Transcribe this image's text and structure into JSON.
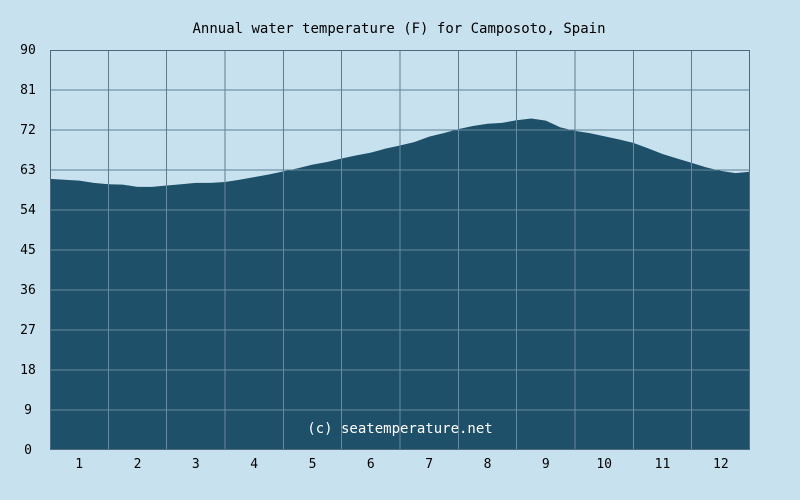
{
  "chart_data": {
    "type": "area",
    "title": "Annual water temperature (F) for Camposoto, Spain",
    "xlabel": "",
    "ylabel": "",
    "ylim": [
      0,
      90
    ],
    "xlim": [
      0.5,
      12.5
    ],
    "y_ticks": [
      0,
      9,
      18,
      27,
      36,
      45,
      54,
      63,
      72,
      81,
      90
    ],
    "x_ticks": [
      1,
      2,
      3,
      4,
      5,
      6,
      7,
      8,
      9,
      10,
      11,
      12
    ],
    "grid": true,
    "series": [
      {
        "x": [
          0.5,
          0.75,
          1.0,
          1.25,
          1.5,
          1.75,
          2.0,
          2.25,
          2.5,
          2.75,
          3.0,
          3.25,
          3.5,
          3.75,
          4.0,
          4.25,
          4.5,
          4.75,
          5.0,
          5.25,
          5.5,
          5.75,
          6.0,
          6.25,
          6.5,
          6.75,
          7.0,
          7.25,
          7.5,
          7.75,
          8.0,
          8.25,
          8.5,
          8.75,
          9.0,
          9.25,
          9.5,
          9.75,
          10.0,
          10.25,
          10.5,
          10.75,
          11.0,
          11.25,
          11.5,
          11.75,
          12.0,
          12.25,
          12.5
        ],
        "values": [
          61.0,
          60.8,
          60.6,
          60.1,
          59.8,
          59.7,
          59.2,
          59.2,
          59.5,
          59.8,
          60.1,
          60.1,
          60.3,
          60.8,
          61.4,
          62.0,
          62.7,
          63.4,
          64.2,
          64.8,
          65.6,
          66.3,
          66.9,
          67.8,
          68.5,
          69.3,
          70.5,
          71.3,
          72.2,
          72.9,
          73.4,
          73.6,
          74.2,
          74.6,
          74.1,
          72.6,
          71.8,
          71.3,
          70.6,
          69.9,
          69.1,
          67.9,
          66.6,
          65.6,
          64.6,
          63.6,
          62.8,
          62.3,
          62.6
        ],
        "color": "#1f5069"
      }
    ],
    "colors": {
      "background": "#c8e1ee",
      "area": "#1f5069",
      "grid_over_area": "#6a8aa0",
      "grid_over_background": "#5a7f95",
      "plot_border": "#4d6a80"
    }
  },
  "watermark": "(c) seatemperature.net"
}
